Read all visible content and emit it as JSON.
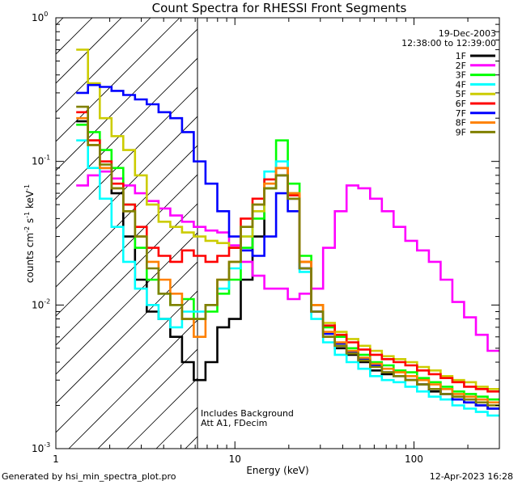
{
  "chart_data": {
    "type": "line",
    "title": "Count Spectra for RHESSI Front Segments",
    "xlabel": "Energy (keV)",
    "ylabel_parts": {
      "a": "counts cm",
      "b": "-2",
      "c": " s",
      "d": "-1",
      "e": " keV",
      "f": "-1"
    },
    "x_scale": "log",
    "y_scale": "log",
    "xlim": [
      1,
      300
    ],
    "ylim": [
      0.001,
      1
    ],
    "x_ticks": [
      {
        "value": 1,
        "label": "1"
      },
      {
        "value": 10,
        "label": "10"
      },
      {
        "value": 100,
        "label": "100"
      }
    ],
    "y_ticks": [
      {
        "value": 0.001,
        "base": "10",
        "exp": "-3"
      },
      {
        "value": 0.01,
        "base": "10",
        "exp": "-2"
      },
      {
        "value": 0.1,
        "base": "10",
        "exp": "-1"
      },
      {
        "value": 1,
        "base": "10",
        "exp": "0"
      }
    ],
    "date": "19-Dec-2003",
    "time_range": "12:38:00 to 12:39:00",
    "shaded_region_xmax": 6,
    "annotation_lines": [
      "Includes Background",
      "Att A1, FDecim"
    ],
    "series": [
      {
        "name": "1F",
        "color": "#000000",
        "values": [
          0.19,
          0.14,
          0.09,
          0.06,
          0.03,
          0.015,
          0.009,
          0.008,
          0.006,
          0.004,
          0.003,
          0.004,
          0.007,
          0.008,
          0.015,
          0.03,
          0.065,
          0.08,
          0.055,
          0.018,
          0.009,
          0.006,
          0.005,
          0.0045,
          0.004,
          0.0035,
          0.0033,
          0.0035,
          0.003,
          0.0028,
          0.0025,
          0.0024,
          0.0022,
          0.0021,
          0.002,
          0.0019
        ]
      },
      {
        "name": "2F",
        "color": "#ff00ff",
        "values": [
          0.068,
          0.08,
          0.085,
          0.076,
          0.068,
          0.06,
          0.053,
          0.047,
          0.042,
          0.038,
          0.035,
          0.033,
          0.032,
          0.026,
          0.02,
          0.016,
          0.013,
          0.013,
          0.011,
          0.012,
          0.013,
          0.025,
          0.045,
          0.068,
          0.065,
          0.055,
          0.045,
          0.035,
          0.028,
          0.024,
          0.02,
          0.015,
          0.0105,
          0.0082,
          0.0062,
          0.0048
        ]
      },
      {
        "name": "3F",
        "color": "#00ff00",
        "values": [
          0.18,
          0.16,
          0.12,
          0.09,
          0.05,
          0.025,
          0.015,
          0.012,
          0.01,
          0.011,
          0.008,
          0.009,
          0.012,
          0.015,
          0.025,
          0.04,
          0.065,
          0.14,
          0.07,
          0.022,
          0.01,
          0.007,
          0.006,
          0.005,
          0.0045,
          0.004,
          0.0038,
          0.0035,
          0.0034,
          0.0031,
          0.0029,
          0.0027,
          0.0025,
          0.0024,
          0.0023,
          0.0022
        ]
      },
      {
        "name": "4F",
        "color": "#00ffff",
        "values": [
          0.14,
          0.09,
          0.055,
          0.035,
          0.02,
          0.013,
          0.01,
          0.008,
          0.007,
          0.009,
          0.009,
          0.01,
          0.013,
          0.018,
          0.03,
          0.045,
          0.085,
          0.1,
          0.06,
          0.017,
          0.008,
          0.0055,
          0.0045,
          0.004,
          0.0036,
          0.0032,
          0.003,
          0.0029,
          0.0027,
          0.0025,
          0.0023,
          0.0022,
          0.002,
          0.0019,
          0.0018,
          0.0017
        ]
      },
      {
        "name": "5F",
        "color": "#cccc00",
        "values": [
          0.6,
          0.35,
          0.2,
          0.15,
          0.12,
          0.08,
          0.05,
          0.038,
          0.035,
          0.032,
          0.03,
          0.028,
          0.027,
          0.025,
          0.03,
          0.045,
          0.07,
          0.09,
          0.06,
          0.02,
          0.01,
          0.0075,
          0.0065,
          0.0058,
          0.0052,
          0.0048,
          0.0044,
          0.0042,
          0.004,
          0.0037,
          0.0035,
          0.0032,
          0.003,
          0.0029,
          0.0027,
          0.0026
        ]
      },
      {
        "name": "6F",
        "color": "#ff0000",
        "values": [
          0.22,
          0.14,
          0.1,
          0.07,
          0.05,
          0.035,
          0.025,
          0.022,
          0.02,
          0.024,
          0.022,
          0.02,
          0.022,
          0.025,
          0.04,
          0.055,
          0.075,
          0.09,
          0.058,
          0.02,
          0.01,
          0.0072,
          0.0062,
          0.0055,
          0.0049,
          0.0045,
          0.0042,
          0.004,
          0.0038,
          0.0035,
          0.0033,
          0.0031,
          0.0029,
          0.0027,
          0.0026,
          0.0025
        ]
      },
      {
        "name": "7F",
        "color": "#0000ff",
        "values": [
          0.3,
          0.34,
          0.33,
          0.31,
          0.29,
          0.27,
          0.25,
          0.22,
          0.2,
          0.16,
          0.1,
          0.07,
          0.045,
          0.03,
          0.024,
          0.022,
          0.03,
          0.06,
          0.045,
          0.018,
          0.009,
          0.0063,
          0.0054,
          0.0047,
          0.0042,
          0.0038,
          0.0034,
          0.0032,
          0.003,
          0.0028,
          0.0026,
          0.0024,
          0.0022,
          0.0021,
          0.002,
          0.0019
        ]
      },
      {
        "name": "8F",
        "color": "#ff8000",
        "values": [
          0.2,
          0.13,
          0.09,
          0.065,
          0.045,
          0.03,
          0.02,
          0.015,
          0.012,
          0.008,
          0.006,
          0.01,
          0.015,
          0.02,
          0.035,
          0.05,
          0.07,
          0.09,
          0.06,
          0.02,
          0.01,
          0.0065,
          0.0055,
          0.0048,
          0.0043,
          0.0039,
          0.0036,
          0.0034,
          0.0032,
          0.003,
          0.0028,
          0.0026,
          0.0024,
          0.0023,
          0.0022,
          0.0021
        ]
      },
      {
        "name": "9F",
        "color": "#808000",
        "values": [
          0.24,
          0.13,
          0.095,
          0.065,
          0.045,
          0.03,
          0.018,
          0.012,
          0.01,
          0.008,
          0.008,
          0.01,
          0.015,
          0.02,
          0.035,
          0.05,
          0.065,
          0.08,
          0.055,
          0.018,
          0.009,
          0.006,
          0.0052,
          0.0046,
          0.0041,
          0.0037,
          0.0034,
          0.0032,
          0.003,
          0.0028,
          0.0026,
          0.0024,
          0.0023,
          0.0022,
          0.0021,
          0.002
        ]
      }
    ]
  },
  "footer": {
    "left": "Generated by hsi_min_spectra_plot.pro",
    "right": "12-Apr-2023 16:28"
  }
}
